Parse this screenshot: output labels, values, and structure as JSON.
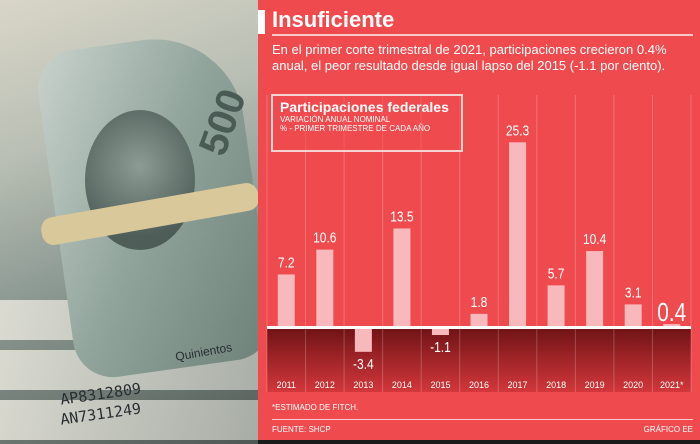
{
  "title": "Insuficiente",
  "lede": "En el primer corte trimestral de 2021, participaciones crecieron 0.4% anual, el peor resultado desde igual lapso del 2015 (-1.1 por ciento).",
  "photo": {
    "serials": [
      "AP8312809",
      "AN7311249"
    ],
    "bill_text": "Quinientos",
    "denomination": "500"
  },
  "footnote": "*ESTIMADO DE FITCH.",
  "source": "FUENTE: SHCP",
  "credit": "GRÁFICO EE",
  "chart_data": {
    "type": "bar",
    "title": "Participaciones federales",
    "subtitle": "VARIACIÓN ANUAL NOMINAL",
    "unit_note": "% - PRIMER TRIMESTRE DE CADA AÑO",
    "categories": [
      "2011",
      "2012",
      "2013",
      "2014",
      "2015",
      "2016",
      "2017",
      "2018",
      "2019",
      "2020",
      "2021*"
    ],
    "values": [
      7.2,
      10.6,
      -3.4,
      13.5,
      -1.1,
      1.8,
      25.3,
      5.7,
      10.4,
      3.1,
      0.4
    ],
    "labels": [
      "7.2",
      "10.6",
      "-3.4",
      "13.5",
      "-1.1",
      "1.8",
      "25.3",
      "5.7",
      "10.4",
      "3.1",
      "0.4"
    ],
    "ylim": [
      -9,
      26
    ],
    "colors": {
      "bar": "#f7b9bb",
      "background": "#ef4b4f",
      "negative_zone": "#7a1518"
    }
  }
}
